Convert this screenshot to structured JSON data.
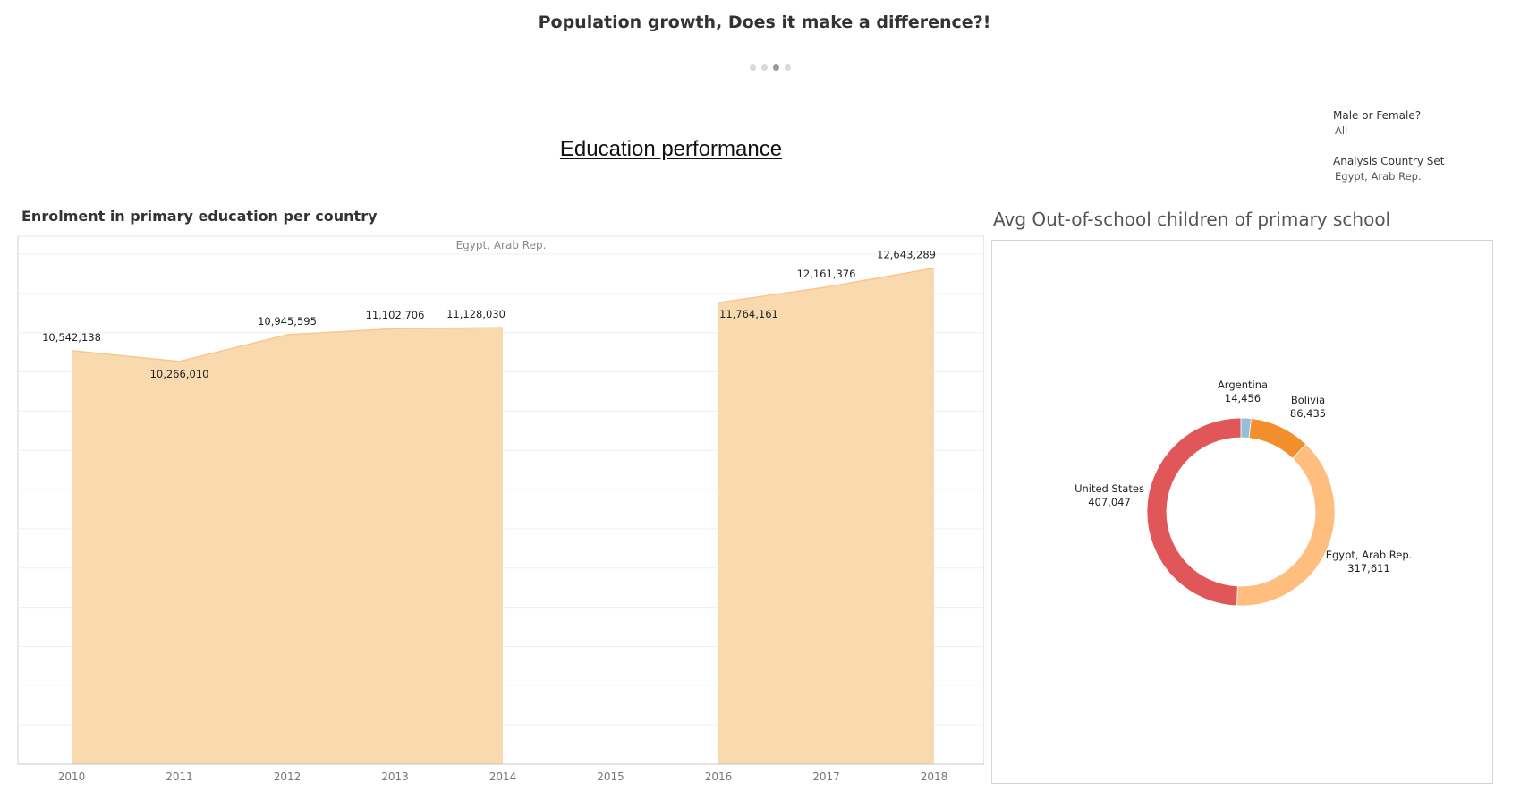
{
  "story": {
    "title": "Population growth, Does it make a difference?!",
    "points": 4,
    "active_point": 3
  },
  "dashboard": {
    "title": "Education performance"
  },
  "filters": [
    {
      "label": "Male or Female?",
      "value": "All"
    },
    {
      "label": "Analysis Country Set",
      "value": "Egypt, Arab Rep."
    }
  ],
  "chart_data": [
    {
      "type": "area",
      "title": "Enrolment in primary education per country",
      "pane_header": "Egypt, Arab Rep.",
      "x": [
        "2010",
        "2011",
        "2012",
        "2013",
        "2014",
        "2015",
        "2016",
        "2017",
        "2018"
      ],
      "series": [
        {
          "values": [
            10542138,
            10266010,
            10945595,
            11102706,
            11128030,
            null,
            11764161,
            12161376,
            12643289
          ],
          "labels": [
            "10,542,138",
            "10,266,010",
            "10,945,595",
            "11,102,706",
            "11,128,030",
            "",
            "11,764,161",
            "12,161,376",
            "12,643,289"
          ],
          "color": "#f9d9ae"
        }
      ],
      "ylim": [
        0,
        13000000
      ],
      "grid": true,
      "xlabel": "",
      "ylabel": ""
    },
    {
      "type": "pie",
      "title": "Avg Out-of-school children of primary school",
      "slices": [
        {
          "label": "Argentina",
          "value": 14456,
          "value_label": "14,456",
          "color": "#93bfd8"
        },
        {
          "label": "Bolivia",
          "value": 86435,
          "value_label": "86,435",
          "color": "#f28e2b"
        },
        {
          "label": "Egypt, Arab Rep.",
          "value": 317611,
          "value_label": "317,611",
          "color": "#ffbe7d"
        },
        {
          "label": "United States",
          "value": 407047,
          "value_label": "407,047",
          "color": "#e15759"
        }
      ]
    }
  ]
}
